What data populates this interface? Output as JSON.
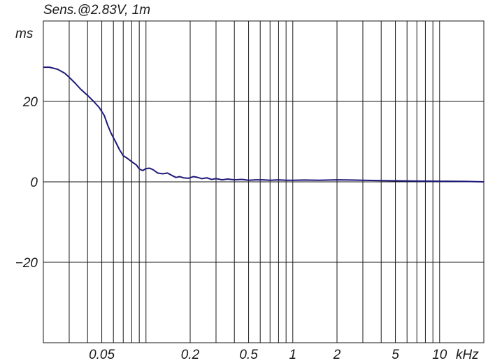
{
  "chart_data": {
    "type": "line",
    "title": "Sens.@2.83V, 1m",
    "ylabel": "ms",
    "xlabel": "kHz",
    "x_scale": "log",
    "x_unit": "Hz",
    "xlim": [
      20,
      20000
    ],
    "ylim": [
      -40,
      40
    ],
    "grid": true,
    "y_ticks": [
      {
        "value": 20,
        "label": "20"
      },
      {
        "value": 0,
        "label": "0"
      },
      {
        "value": -20,
        "label": "−20"
      }
    ],
    "x_ticks": [
      {
        "value": 50,
        "label": "0.05"
      },
      {
        "value": 200,
        "label": "0.2"
      },
      {
        "value": 500,
        "label": "0.5"
      },
      {
        "value": 1000,
        "label": "1"
      },
      {
        "value": 2000,
        "label": "2"
      },
      {
        "value": 5000,
        "label": "5"
      },
      {
        "value": 10000,
        "label": "10"
      }
    ],
    "series": [
      {
        "color": "#1f1a7a",
        "points": [
          [
            20,
            28.5
          ],
          [
            22,
            28.5
          ],
          [
            25,
            28.0
          ],
          [
            28,
            27.0
          ],
          [
            30,
            26.0
          ],
          [
            33,
            24.5
          ],
          [
            36,
            23.0
          ],
          [
            40,
            21.5
          ],
          [
            44,
            20.0
          ],
          [
            48,
            18.5
          ],
          [
            52,
            16.5
          ],
          [
            55,
            14.0
          ],
          [
            58,
            12.0
          ],
          [
            62,
            10.0
          ],
          [
            66,
            8.0
          ],
          [
            70,
            6.5
          ],
          [
            75,
            5.8
          ],
          [
            80,
            5.0
          ],
          [
            86,
            4.2
          ],
          [
            90,
            3.2
          ],
          [
            95,
            2.8
          ],
          [
            100,
            3.3
          ],
          [
            106,
            3.4
          ],
          [
            112,
            3.0
          ],
          [
            120,
            2.2
          ],
          [
            130,
            2.0
          ],
          [
            140,
            2.2
          ],
          [
            150,
            1.6
          ],
          [
            160,
            1.1
          ],
          [
            170,
            1.3
          ],
          [
            180,
            1.0
          ],
          [
            195,
            0.9
          ],
          [
            210,
            1.3
          ],
          [
            225,
            1.1
          ],
          [
            240,
            0.8
          ],
          [
            260,
            1.0
          ],
          [
            280,
            0.6
          ],
          [
            300,
            0.8
          ],
          [
            330,
            0.5
          ],
          [
            360,
            0.7
          ],
          [
            400,
            0.5
          ],
          [
            450,
            0.6
          ],
          [
            500,
            0.4
          ],
          [
            560,
            0.5
          ],
          [
            630,
            0.5
          ],
          [
            700,
            0.4
          ],
          [
            800,
            0.5
          ],
          [
            900,
            0.4
          ],
          [
            1000,
            0.4
          ],
          [
            1200,
            0.45
          ],
          [
            1500,
            0.4
          ],
          [
            2000,
            0.5
          ],
          [
            2500,
            0.45
          ],
          [
            3000,
            0.4
          ],
          [
            4000,
            0.3
          ],
          [
            5000,
            0.25
          ],
          [
            7000,
            0.2
          ],
          [
            10000,
            0.15
          ],
          [
            15000,
            0.1
          ],
          [
            20000,
            0.0
          ]
        ]
      }
    ]
  }
}
